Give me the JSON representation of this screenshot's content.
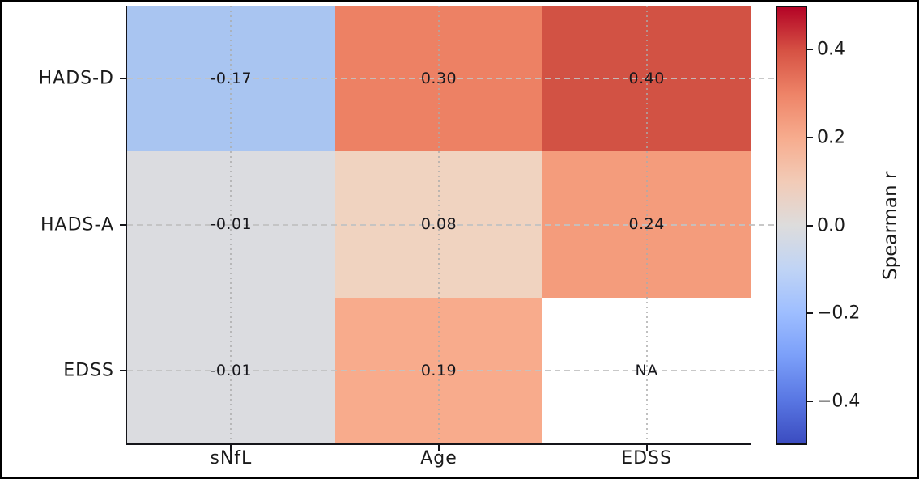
{
  "chart_data": {
    "type": "heatmap",
    "colormap": "coolwarm",
    "rows": [
      "HADS-D",
      "HADS-A",
      "EDSS"
    ],
    "columns": [
      "sNfL",
      "Age",
      "EDSS"
    ],
    "values": [
      [
        -0.17,
        0.3,
        0.4
      ],
      [
        -0.01,
        0.08,
        0.24
      ],
      [
        -0.01,
        0.19,
        null
      ]
    ],
    "labels": [
      [
        "-0.17",
        "0.30",
        "0.40"
      ],
      [
        "-0.01",
        "0.08",
        "0.24"
      ],
      [
        "-0.01",
        "0.19",
        "NA"
      ]
    ],
    "cell_colors": [
      [
        "#a9c5f1",
        "#ed8164",
        "#d25244"
      ],
      [
        "#dbdce0",
        "#f0d3c0",
        "#f49c7c"
      ],
      [
        "#dbdce0",
        "#f8ab8c",
        "#ffffff"
      ]
    ],
    "grid": true,
    "colorbar": {
      "label": "Spearman r",
      "vmin": -0.5,
      "vmax": 0.5,
      "ticks": [
        {
          "v": 0.4,
          "label": "0.4"
        },
        {
          "v": 0.2,
          "label": "0.2"
        },
        {
          "v": 0.0,
          "label": "0.0"
        },
        {
          "v": -0.2,
          "label": "−0.2"
        },
        {
          "v": -0.4,
          "label": "−0.4"
        }
      ],
      "gradient_top_to_bottom": [
        "#b40426",
        "#d65244",
        "#ee8468",
        "#f7ac8e",
        "#f2cbb7",
        "#dddcdc",
        "#c0d4f5",
        "#9ebeff",
        "#7b9ff9",
        "#5977e3",
        "#3b4cc0"
      ]
    }
  }
}
